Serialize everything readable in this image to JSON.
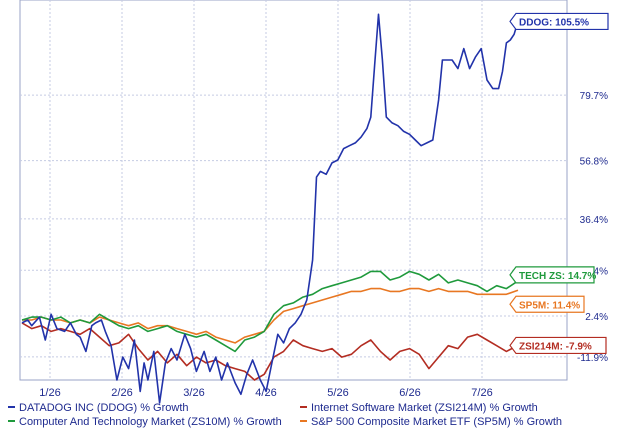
{
  "chart_data": {
    "type": "line",
    "x": [
      "1/26",
      "2/26",
      "3/26",
      "4/26",
      "5/26",
      "6/26",
      "7/26"
    ],
    "y_ticks": [
      "79.7%",
      "56.8%",
      "36.4%",
      "18.4%",
      "2.4%",
      "-11.9%"
    ],
    "ylim": [
      -20,
      113
    ],
    "grid": true,
    "legend": "bottom",
    "series": [
      {
        "name": "DATADOG INC (DDOG) % Growth",
        "color": "#2233aa",
        "end_label": "DDOG: 105.5%",
        "points": [
          [
            0,
            0
          ],
          [
            3,
            1
          ],
          [
            5,
            -1
          ],
          [
            9,
            2
          ],
          [
            12,
            -6
          ],
          [
            15,
            3
          ],
          [
            18,
            -2
          ],
          [
            22,
            -3
          ],
          [
            25,
            0
          ],
          [
            28,
            -4
          ],
          [
            30,
            -5
          ],
          [
            33,
            -10
          ],
          [
            36,
            -1
          ],
          [
            38,
            0
          ],
          [
            41,
            1
          ],
          [
            43,
            -3
          ],
          [
            46,
            -8
          ],
          [
            49,
            -20
          ],
          [
            52,
            -12
          ],
          [
            55,
            -16
          ],
          [
            58,
            -6
          ],
          [
            61,
            -24
          ],
          [
            63,
            -14
          ],
          [
            65,
            -20
          ],
          [
            68,
            -10
          ],
          [
            71,
            -28
          ],
          [
            74,
            -14
          ],
          [
            77,
            -9
          ],
          [
            80,
            -13
          ],
          [
            84,
            -4
          ],
          [
            87,
            -9
          ],
          [
            90,
            -17
          ],
          [
            94,
            -10
          ],
          [
            97,
            -17
          ],
          [
            100,
            -12
          ],
          [
            103,
            -20
          ],
          [
            106,
            -14
          ],
          [
            110,
            -21
          ],
          [
            113,
            -25
          ],
          [
            116,
            -18
          ],
          [
            119,
            -13
          ],
          [
            123,
            -20
          ],
          [
            126,
            -24
          ],
          [
            129,
            -14
          ],
          [
            132,
            -4
          ],
          [
            135,
            -7
          ],
          [
            138,
            -2
          ],
          [
            141,
            0
          ],
          [
            144,
            3
          ],
          [
            147,
            8
          ],
          [
            150,
            22
          ],
          [
            152,
            51
          ],
          [
            154,
            53
          ],
          [
            157,
            52
          ],
          [
            160,
            56
          ],
          [
            163,
            57
          ],
          [
            166,
            61
          ],
          [
            169,
            62
          ],
          [
            172,
            63
          ],
          [
            175,
            65
          ],
          [
            178,
            68
          ],
          [
            180,
            72
          ],
          [
            182,
            90
          ],
          [
            184,
            108
          ],
          [
            186,
            92
          ],
          [
            188,
            72
          ],
          [
            191,
            70
          ],
          [
            194,
            69
          ],
          [
            197,
            67
          ],
          [
            200,
            66
          ],
          [
            203,
            64
          ],
          [
            206,
            62
          ],
          [
            209,
            63
          ],
          [
            212,
            64
          ],
          [
            215,
            78
          ],
          [
            217,
            92
          ],
          [
            219,
            92
          ],
          [
            222,
            92
          ],
          [
            225,
            89
          ],
          [
            228,
            96
          ],
          [
            231,
            89
          ],
          [
            234,
            93
          ],
          [
            237,
            96
          ],
          [
            240,
            85
          ],
          [
            243,
            82
          ],
          [
            246,
            82
          ],
          [
            248,
            88
          ],
          [
            250,
            98
          ],
          [
            252,
            99
          ],
          [
            254,
            101
          ],
          [
            256,
            105.5
          ]
        ]
      },
      {
        "name": "Internet Software Market (ZSI214M) % Growth",
        "color": "#b32d22",
        "end_label": "ZSI214M: -7.9%",
        "points": [
          [
            0,
            0
          ],
          [
            5,
            -2
          ],
          [
            10,
            -1
          ],
          [
            15,
            -3
          ],
          [
            20,
            -2
          ],
          [
            25,
            -3
          ],
          [
            30,
            -4
          ],
          [
            35,
            -2
          ],
          [
            40,
            -5
          ],
          [
            45,
            -8
          ],
          [
            50,
            -7
          ],
          [
            55,
            -4
          ],
          [
            60,
            -9
          ],
          [
            65,
            -13
          ],
          [
            70,
            -10
          ],
          [
            75,
            -14
          ],
          [
            80,
            -11
          ],
          [
            85,
            -15
          ],
          [
            90,
            -12
          ],
          [
            95,
            -14
          ],
          [
            100,
            -13
          ],
          [
            105,
            -15
          ],
          [
            110,
            -16
          ],
          [
            115,
            -17
          ],
          [
            120,
            -20
          ],
          [
            125,
            -18
          ],
          [
            130,
            -12
          ],
          [
            135,
            -10
          ],
          [
            140,
            -6
          ],
          [
            145,
            -8
          ],
          [
            150,
            -9
          ],
          [
            155,
            -10
          ],
          [
            160,
            -9
          ],
          [
            165,
            -12
          ],
          [
            170,
            -11
          ],
          [
            175,
            -8
          ],
          [
            180,
            -6
          ],
          [
            185,
            -10
          ],
          [
            190,
            -13
          ],
          [
            195,
            -10
          ],
          [
            200,
            -9
          ],
          [
            205,
            -11
          ],
          [
            210,
            -16
          ],
          [
            215,
            -12
          ],
          [
            220,
            -8
          ],
          [
            225,
            -9
          ],
          [
            230,
            -5
          ],
          [
            235,
            -4
          ],
          [
            240,
            -6
          ],
          [
            245,
            -8
          ],
          [
            250,
            -10
          ],
          [
            256,
            -7.9
          ]
        ]
      },
      {
        "name": "Computer And Technology Market (ZS10M) % Growth",
        "color": "#1f9a3c",
        "end_label": "TECH ZS: 14.7%",
        "points": [
          [
            0,
            1
          ],
          [
            5,
            2
          ],
          [
            10,
            2
          ],
          [
            15,
            1
          ],
          [
            20,
            2
          ],
          [
            25,
            0
          ],
          [
            30,
            1
          ],
          [
            35,
            0
          ],
          [
            40,
            3
          ],
          [
            45,
            1
          ],
          [
            50,
            -1
          ],
          [
            55,
            -2
          ],
          [
            60,
            -1
          ],
          [
            65,
            -3
          ],
          [
            70,
            -2
          ],
          [
            75,
            -1
          ],
          [
            80,
            -3
          ],
          [
            85,
            -4
          ],
          [
            90,
            -5
          ],
          [
            95,
            -4
          ],
          [
            100,
            -6
          ],
          [
            105,
            -8
          ],
          [
            110,
            -10
          ],
          [
            115,
            -6
          ],
          [
            120,
            -5
          ],
          [
            125,
            -3
          ],
          [
            130,
            3
          ],
          [
            135,
            6
          ],
          [
            140,
            7
          ],
          [
            145,
            9
          ],
          [
            150,
            10
          ],
          [
            155,
            12
          ],
          [
            160,
            13
          ],
          [
            165,
            14
          ],
          [
            170,
            15
          ],
          [
            175,
            16
          ],
          [
            180,
            18
          ],
          [
            185,
            18
          ],
          [
            190,
            15
          ],
          [
            195,
            16
          ],
          [
            200,
            18
          ],
          [
            205,
            17
          ],
          [
            210,
            15
          ],
          [
            215,
            17
          ],
          [
            220,
            14
          ],
          [
            225,
            15
          ],
          [
            230,
            14
          ],
          [
            235,
            13
          ],
          [
            240,
            11
          ],
          [
            245,
            13
          ],
          [
            250,
            12
          ],
          [
            256,
            14.7
          ]
        ]
      },
      {
        "name": "S&P 500 Composite Market ETF (SP5M) % Growth",
        "color": "#e87722",
        "end_label": "SP5M: 11.4%",
        "points": [
          [
            0,
            1
          ],
          [
            5,
            1
          ],
          [
            10,
            2
          ],
          [
            15,
            1
          ],
          [
            20,
            1
          ],
          [
            25,
            0
          ],
          [
            30,
            1
          ],
          [
            35,
            0
          ],
          [
            40,
            2
          ],
          [
            45,
            1
          ],
          [
            50,
            0
          ],
          [
            55,
            -1
          ],
          [
            60,
            0
          ],
          [
            65,
            -2
          ],
          [
            70,
            -1
          ],
          [
            75,
            -1
          ],
          [
            80,
            -2
          ],
          [
            85,
            -3
          ],
          [
            90,
            -4
          ],
          [
            95,
            -3
          ],
          [
            100,
            -5
          ],
          [
            105,
            -6
          ],
          [
            110,
            -7
          ],
          [
            115,
            -5
          ],
          [
            120,
            -4
          ],
          [
            125,
            -3
          ],
          [
            130,
            1
          ],
          [
            135,
            4
          ],
          [
            140,
            5
          ],
          [
            145,
            6
          ],
          [
            150,
            7
          ],
          [
            155,
            8
          ],
          [
            160,
            9
          ],
          [
            165,
            10
          ],
          [
            170,
            11
          ],
          [
            175,
            11
          ],
          [
            180,
            12
          ],
          [
            185,
            12
          ],
          [
            190,
            11
          ],
          [
            195,
            11
          ],
          [
            200,
            12
          ],
          [
            205,
            12
          ],
          [
            210,
            11
          ],
          [
            215,
            12
          ],
          [
            220,
            11
          ],
          [
            225,
            11
          ],
          [
            230,
            11
          ],
          [
            235,
            10
          ],
          [
            240,
            10
          ],
          [
            245,
            10
          ],
          [
            250,
            10
          ],
          [
            256,
            11.4
          ]
        ]
      }
    ]
  }
}
